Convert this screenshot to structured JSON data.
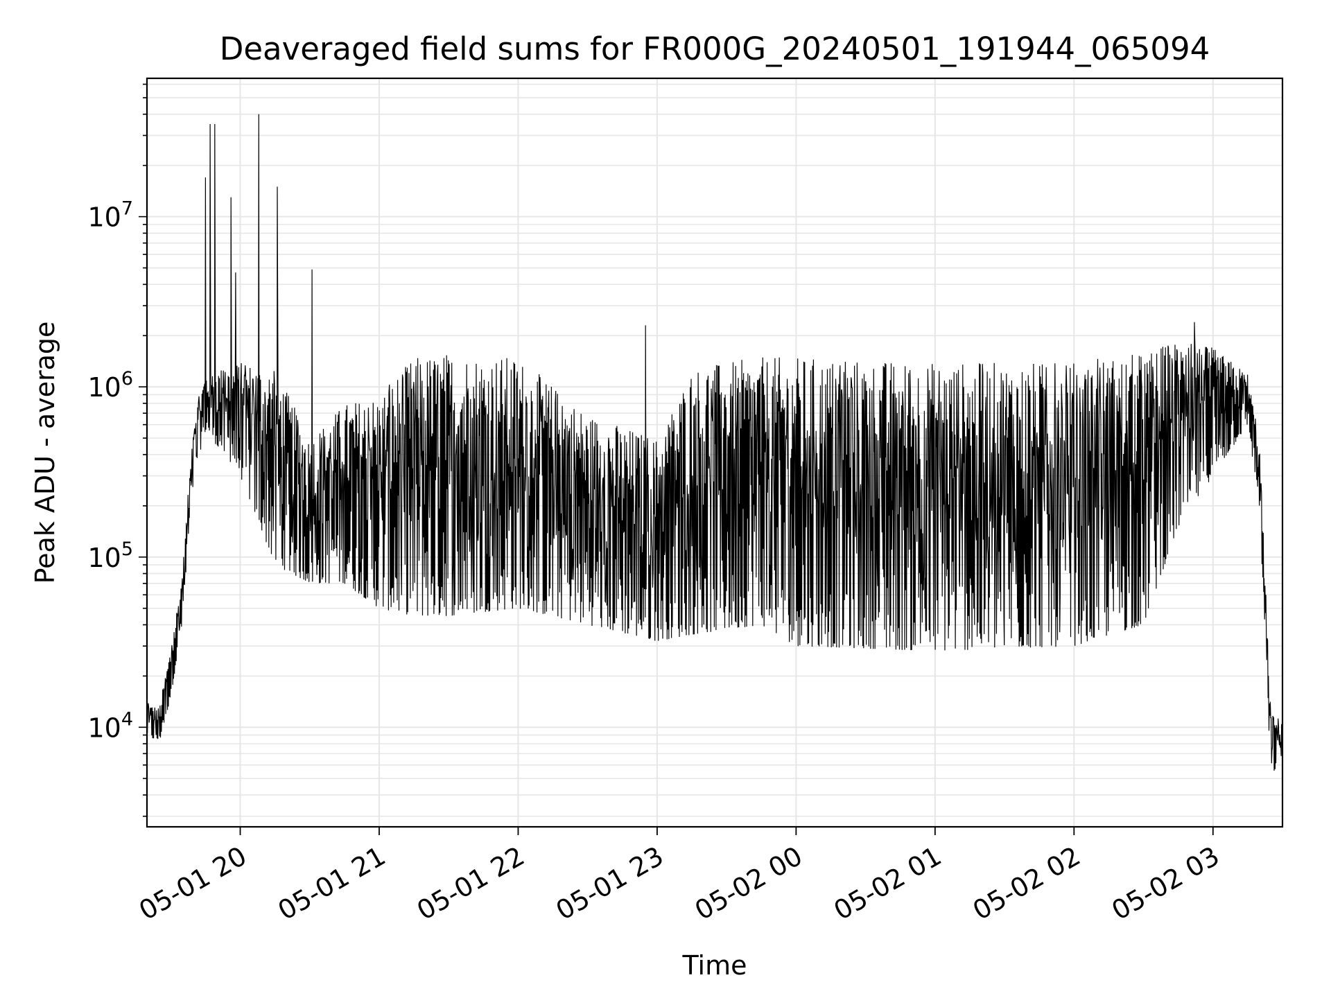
{
  "chart_data": {
    "type": "line",
    "title": "Deaveraged field sums for FR000G_20240501_191944_065094",
    "xlabel": "Time",
    "ylabel": "Peak ADU - average",
    "yscale": "log",
    "ylim": [
      2600,
      65000000
    ],
    "xlim": [
      "2024-05-01 19:19:44",
      "2024-05-02 03:30:00"
    ],
    "grid": true,
    "line_color": "#000000",
    "x_ticks": [
      {
        "value": "2024-05-01 20:00",
        "label": "05-01 20"
      },
      {
        "value": "2024-05-01 21:00",
        "label": "05-01 21"
      },
      {
        "value": "2024-05-01 22:00",
        "label": "05-01 22"
      },
      {
        "value": "2024-05-01 23:00",
        "label": "05-01 23"
      },
      {
        "value": "2024-05-02 00:00",
        "label": "05-02 00"
      },
      {
        "value": "2024-05-02 01:00",
        "label": "05-02 01"
      },
      {
        "value": "2024-05-02 02:00",
        "label": "05-02 02"
      },
      {
        "value": "2024-05-02 03:00",
        "label": "05-02 03"
      }
    ],
    "y_ticks": [
      {
        "value": 10000,
        "base": "10",
        "exponent": "4"
      },
      {
        "value": 100000,
        "base": "10",
        "exponent": "5"
      },
      {
        "value": 1000000,
        "base": "10",
        "exponent": "6"
      },
      {
        "value": 10000000,
        "base": "10",
        "exponent": "7"
      }
    ],
    "envelope": [
      {
        "t": "2024-05-01 19:19:44",
        "lo": 9000,
        "hi": 14000
      },
      {
        "t": "2024-05-01 19:25",
        "lo": 8000,
        "hi": 13000
      },
      {
        "t": "2024-05-01 19:30",
        "lo": 15000,
        "hi": 30000
      },
      {
        "t": "2024-05-01 19:35",
        "lo": 40000,
        "hi": 80000
      },
      {
        "t": "2024-05-01 19:40",
        "lo": 300000,
        "hi": 700000
      },
      {
        "t": "2024-05-01 19:45",
        "lo": 550000,
        "hi": 1200000
      },
      {
        "t": "2024-05-01 20:00",
        "lo": 300000,
        "hi": 1400000
      },
      {
        "t": "2024-05-01 20:15",
        "lo": 90000,
        "hi": 1300000
      },
      {
        "t": "2024-05-01 20:30",
        "lo": 70000,
        "hi": 500000
      },
      {
        "t": "2024-05-01 20:45",
        "lo": 70000,
        "hi": 800000
      },
      {
        "t": "2024-05-01 21:00",
        "lo": 50000,
        "hi": 900000
      },
      {
        "t": "2024-05-01 21:15",
        "lo": 45000,
        "hi": 1500000
      },
      {
        "t": "2024-05-01 21:30",
        "lo": 45000,
        "hi": 1600000
      },
      {
        "t": "2024-05-01 22:00",
        "lo": 50000,
        "hi": 1500000
      },
      {
        "t": "2024-05-01 22:30",
        "lo": 40000,
        "hi": 700000
      },
      {
        "t": "2024-05-01 23:00",
        "lo": 32000,
        "hi": 500000
      },
      {
        "t": "2024-05-01 23:15",
        "lo": 35000,
        "hi": 1300000
      },
      {
        "t": "2024-05-01 23:45",
        "lo": 40000,
        "hi": 1500000
      },
      {
        "t": "2024-05-02 00:00",
        "lo": 30000,
        "hi": 1500000
      },
      {
        "t": "2024-05-02 01:00",
        "lo": 28000,
        "hi": 1400000
      },
      {
        "t": "2024-05-02 02:00",
        "lo": 30000,
        "hi": 1400000
      },
      {
        "t": "2024-05-02 02:30",
        "lo": 40000,
        "hi": 1600000
      },
      {
        "t": "2024-05-02 02:45",
        "lo": 150000,
        "hi": 1900000
      },
      {
        "t": "2024-05-02 03:00",
        "lo": 300000,
        "hi": 1700000
      },
      {
        "t": "2024-05-02 03:15",
        "lo": 600000,
        "hi": 1200000
      },
      {
        "t": "2024-05-02 03:20",
        "lo": 200000,
        "hi": 500000
      },
      {
        "t": "2024-05-02 03:25",
        "lo": 5000,
        "hi": 12000
      },
      {
        "t": "2024-05-02 03:30",
        "lo": 7000,
        "hi": 11000
      }
    ],
    "spikes": [
      {
        "t": "2024-05-01 19:45",
        "v": 17000000
      },
      {
        "t": "2024-05-01 19:47",
        "v": 35000000
      },
      {
        "t": "2024-05-01 19:49",
        "v": 35000000
      },
      {
        "t": "2024-05-01 19:56",
        "v": 13000000
      },
      {
        "t": "2024-05-01 19:58",
        "v": 4700000
      },
      {
        "t": "2024-05-01 20:08",
        "v": 40000000
      },
      {
        "t": "2024-05-01 20:16",
        "v": 15000000
      },
      {
        "t": "2024-05-01 20:31",
        "v": 4900000
      },
      {
        "t": "2024-05-01 22:55",
        "v": 2300000
      },
      {
        "t": "2024-05-02 02:52",
        "v": 2400000
      }
    ]
  }
}
